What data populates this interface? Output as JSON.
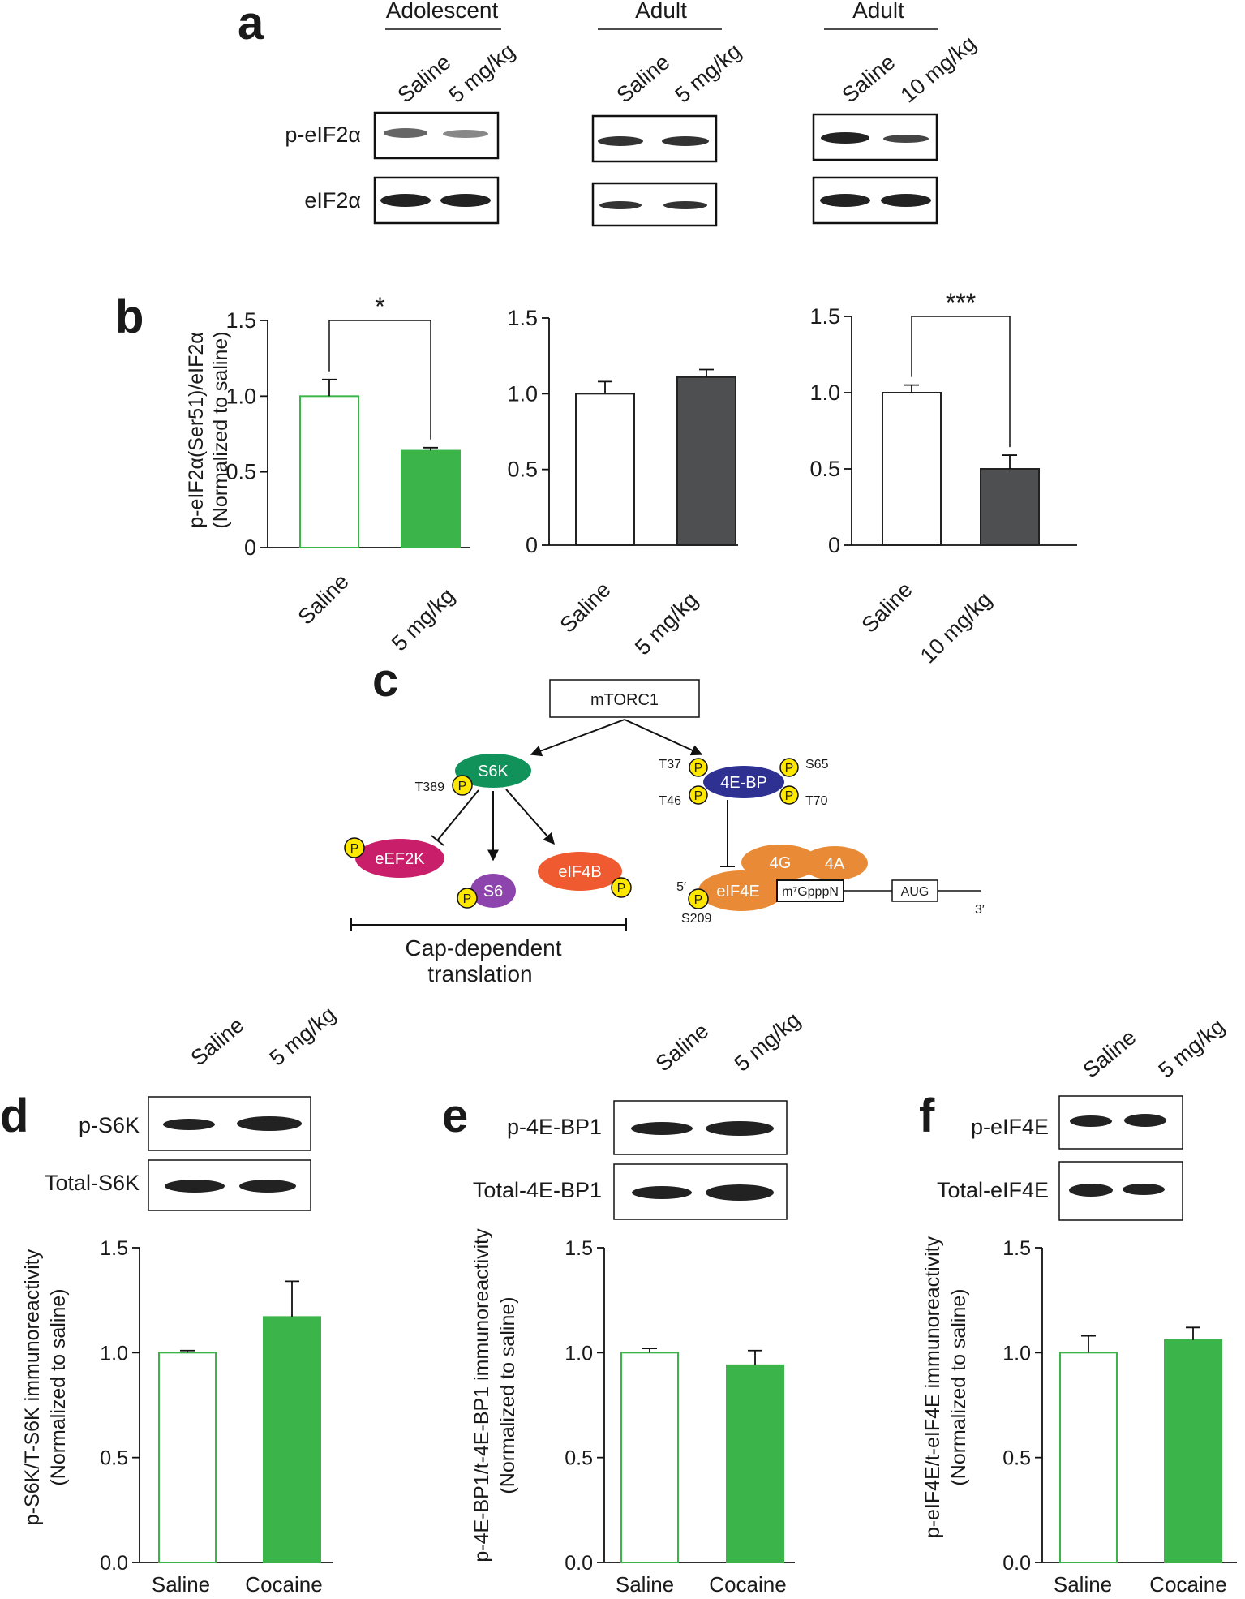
{
  "panels": {
    "a": "a",
    "b": "b",
    "c": "c",
    "d": "d",
    "e": "e",
    "f": "f"
  },
  "colors": {
    "green": "#3bb54a",
    "dark": "#4d4f51",
    "white": "#ffffff",
    "s6k": "#10925a",
    "eef2k": "#c91e6a",
    "s6": "#8e44ad",
    "eif4b": "#ef5a30",
    "bp": "#2e3192",
    "orange": "#e98b36",
    "phospho": "#ffe800"
  },
  "panel_a": {
    "groups": [
      {
        "title": "Adolescent",
        "lanes": [
          "Saline",
          "5 mg/kg"
        ]
      },
      {
        "title": "Adult",
        "lanes": [
          "Saline",
          "5 mg/kg"
        ]
      },
      {
        "title": "Adult",
        "lanes": [
          "Saline",
          "10 mg/kg"
        ]
      }
    ],
    "rows": [
      "p-eIF2α",
      "eIF2α"
    ]
  },
  "panel_c": {
    "mtorc1": "mTORC1",
    "s6k": "S6K",
    "t389": "T389",
    "eef2k": "eEF2K",
    "s6": "S6",
    "eif4b": "eIF4B",
    "bp": "4E-BP",
    "t37": "T37",
    "t46": "T46",
    "s65": "S65",
    "t70": "T70",
    "g4": "4G",
    "a4": "4A",
    "eif4e": "eIF4E",
    "cap": "m⁷GpppN",
    "aug": "AUG",
    "five": "5′",
    "three": "3′",
    "s209": "S209",
    "p": "P",
    "caption_line1": "Cap-dependent",
    "caption_line2": "translation"
  },
  "blots_def": {
    "d": {
      "lanes": [
        "Saline",
        "5 mg/kg"
      ],
      "rows": [
        "p-S6K",
        "Total-S6K"
      ]
    },
    "e": {
      "lanes": [
        "Saline",
        "5 mg/kg"
      ],
      "rows": [
        "p-4E-BP1",
        "Total-4E-BP1"
      ]
    },
    "f": {
      "lanes": [
        "Saline",
        "5 mg/kg"
      ],
      "rows": [
        "p-eIF4E",
        "Total-eIF4E"
      ]
    }
  },
  "chart_data": [
    {
      "panel": "b",
      "type": "bar",
      "categories": [
        "Saline",
        "5 mg/kg"
      ],
      "values": [
        1.0,
        0.64
      ],
      "errors": [
        0.11,
        0.02
      ],
      "fills": [
        "#ffffff",
        "#3bb54a"
      ],
      "strokes": [
        "#3bb54a",
        "#3bb54a"
      ],
      "ylabel": [
        "p-eIF2α(Ser51)/eIF2α",
        "(Normalized to saline)"
      ],
      "ylim": [
        0,
        1.5
      ],
      "yticks": [
        "0",
        "0.5",
        "1.0",
        "1.5"
      ],
      "significance": "*"
    },
    {
      "panel": "b",
      "type": "bar",
      "categories": [
        "Saline",
        "5 mg/kg"
      ],
      "values": [
        1.0,
        1.11
      ],
      "errors": [
        0.08,
        0.05
      ],
      "fills": [
        "#ffffff",
        "#4d4f51"
      ],
      "strokes": [
        "#222222",
        "#222222"
      ],
      "ylim": [
        0,
        1.5
      ],
      "yticks": [
        "0",
        "0.5",
        "1.0",
        "1.5"
      ]
    },
    {
      "panel": "b",
      "type": "bar",
      "categories": [
        "Saline",
        "10 mg/kg"
      ],
      "values": [
        1.0,
        0.5
      ],
      "errors": [
        0.05,
        0.09
      ],
      "fills": [
        "#ffffff",
        "#4d4f51"
      ],
      "strokes": [
        "#222222",
        "#222222"
      ],
      "ylim": [
        0,
        1.5
      ],
      "yticks": [
        "0",
        "0.5",
        "1.0",
        "1.5"
      ],
      "significance": "***"
    },
    {
      "panel": "d",
      "type": "bar",
      "categories": [
        "Saline",
        "Cocaine"
      ],
      "values": [
        1.0,
        1.17
      ],
      "errors": [
        0.01,
        0.17
      ],
      "fills": [
        "#ffffff",
        "#3bb54a"
      ],
      "strokes": [
        "#3bb54a",
        "#3bb54a"
      ],
      "ylabel": [
        "p-S6K/T-S6K immunoreactivity",
        "(Normalized to saline)"
      ],
      "ylim": [
        0,
        1.5
      ],
      "yticks": [
        "0.0",
        "0.5",
        "1.0",
        "1.5"
      ]
    },
    {
      "panel": "e",
      "type": "bar",
      "categories": [
        "Saline",
        "Cocaine"
      ],
      "values": [
        1.0,
        0.94
      ],
      "errors": [
        0.02,
        0.07
      ],
      "fills": [
        "#ffffff",
        "#3bb54a"
      ],
      "strokes": [
        "#3bb54a",
        "#3bb54a"
      ],
      "ylabel": [
        "p-4E-BP1/t-4E-BP1 immunoreactivity",
        "(Normalized to saline)"
      ],
      "ylim": [
        0,
        1.5
      ],
      "yticks": [
        "0.0",
        "0.5",
        "1.0",
        "1.5"
      ]
    },
    {
      "panel": "f",
      "type": "bar",
      "categories": [
        "Saline",
        "Cocaine"
      ],
      "values": [
        1.0,
        1.06
      ],
      "errors": [
        0.08,
        0.06
      ],
      "fills": [
        "#ffffff",
        "#3bb54a"
      ],
      "strokes": [
        "#3bb54a",
        "#3bb54a"
      ],
      "ylabel": [
        "p-eIF4E/t-eIF4E immunoreactivity",
        "(Normalized to saline)"
      ],
      "ylim": [
        0,
        1.5
      ],
      "yticks": [
        "0.0",
        "0.5",
        "1.0",
        "1.5"
      ]
    }
  ]
}
